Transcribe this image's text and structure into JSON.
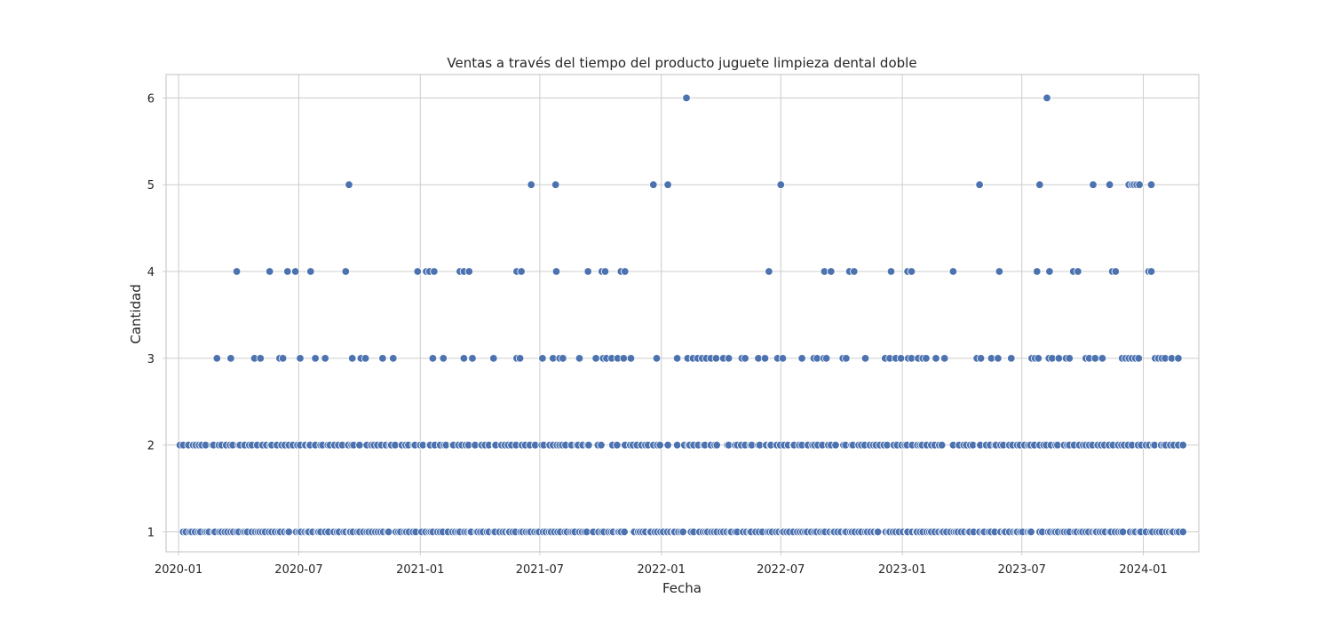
{
  "chart_data": {
    "type": "scatter",
    "title": "Ventas a través del tiempo del producto juguete limpieza dental doble",
    "xlabel": "Fecha",
    "ylabel": "Cantidad",
    "x_ticks": [
      "2020-01",
      "2020-07",
      "2021-01",
      "2021-07",
      "2022-01",
      "2022-07",
      "2023-01",
      "2023-07",
      "2024-01"
    ],
    "y_ticks": [
      1,
      2,
      3,
      4,
      5,
      6
    ],
    "xlim": [
      "2019-12-13",
      "2024-03-25"
    ],
    "ylim": [
      0.77,
      6.27
    ],
    "grid": true,
    "color": "#4c72b0",
    "series": [
      {
        "y": 6,
        "x": [
          "2022-02-08",
          "2023-08-08"
        ]
      },
      {
        "y": 5,
        "x": [
          "2020-09-15",
          "2021-06-18",
          "2021-07-25",
          "2021-12-20",
          "2022-01-11",
          "2022-07-01",
          "2023-04-28",
          "2023-07-28",
          "2023-10-17",
          "2023-11-11",
          "2023-12-10",
          "2023-12-15",
          "2023-12-18",
          "2023-12-22",
          "2023-12-26",
          "2024-01-13"
        ]
      },
      {
        "y": 4,
        "x": [
          "2020-03-29",
          "2020-05-18",
          "2020-06-14",
          "2020-06-26",
          "2020-07-19",
          "2020-09-10",
          "2020-12-28",
          "2021-01-10",
          "2021-01-15",
          "2021-01-22",
          "2021-03-02",
          "2021-03-08",
          "2021-03-16",
          "2021-05-27",
          "2021-06-03",
          "2021-07-26",
          "2021-09-12",
          "2021-10-03",
          "2021-10-08",
          "2021-11-01",
          "2021-11-07",
          "2022-06-13",
          "2022-09-05",
          "2022-09-15",
          "2022-10-13",
          "2022-10-20",
          "2022-12-15",
          "2023-01-09",
          "2023-01-15",
          "2023-03-19",
          "2023-05-28",
          "2023-07-24",
          "2023-08-12",
          "2023-09-17",
          "2023-09-24",
          "2023-11-15",
          "2023-11-20",
          "2024-01-09",
          "2024-01-13"
        ]
      },
      {
        "y": 3,
        "x": [
          "2020-02-28",
          "2020-03-20",
          "2020-04-25",
          "2020-05-04",
          "2020-06-02",
          "2020-06-07",
          "2020-07-03",
          "2020-07-26",
          "2020-08-10",
          "2020-09-20",
          "2020-10-03",
          "2020-10-10",
          "2020-11-05",
          "2020-11-21",
          "2021-01-20",
          "2021-02-05",
          "2021-03-08",
          "2021-03-21",
          "2021-04-22",
          "2021-05-27",
          "2021-06-01",
          "2021-07-05",
          "2021-07-21",
          "2021-07-31",
          "2021-08-05",
          "2021-08-30",
          "2021-09-24",
          "2021-10-05",
          "2021-10-10",
          "2021-10-18",
          "2021-10-27",
          "2021-11-05",
          "2021-11-16",
          "2021-12-25",
          "2022-01-25",
          "2022-02-10",
          "2022-02-18",
          "2022-02-25",
          "2022-03-04",
          "2022-03-10",
          "2022-03-17",
          "2022-03-25",
          "2022-04-05",
          "2022-04-13",
          "2022-05-03",
          "2022-05-08",
          "2022-05-28",
          "2022-06-07",
          "2022-06-26",
          "2022-07-04",
          "2022-08-02",
          "2022-08-20",
          "2022-08-25",
          "2022-09-04",
          "2022-09-08",
          "2022-10-03",
          "2022-10-08",
          "2022-11-06",
          "2022-12-06",
          "2022-12-13",
          "2022-12-22",
          "2022-12-30",
          "2023-01-10",
          "2023-01-15",
          "2023-01-25",
          "2023-02-01",
          "2023-02-06",
          "2023-02-21",
          "2023-03-06",
          "2023-04-24",
          "2023-04-30",
          "2023-05-16",
          "2023-05-26",
          "2023-06-15",
          "2023-07-16",
          "2023-07-21",
          "2023-07-26",
          "2023-08-11",
          "2023-08-16",
          "2023-08-26",
          "2023-09-06",
          "2023-09-11",
          "2023-10-06",
          "2023-10-11",
          "2023-10-20",
          "2023-10-31",
          "2023-11-30",
          "2023-12-05",
          "2023-12-10",
          "2023-12-15",
          "2023-12-20",
          "2023-12-25",
          "2024-01-19",
          "2024-01-24",
          "2024-01-29",
          "2024-02-03",
          "2024-02-13",
          "2024-02-23"
        ]
      },
      {
        "y": 2,
        "x_range": [
          "2020-01-03",
          "2024-03-01"
        ],
        "count": 260
      },
      {
        "y": 1,
        "x_range": [
          "2020-01-08",
          "2024-03-01"
        ],
        "count": 340
      }
    ]
  }
}
